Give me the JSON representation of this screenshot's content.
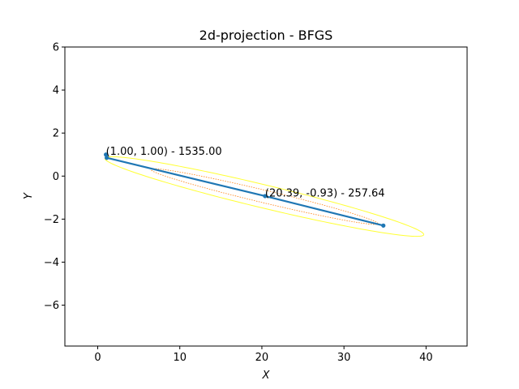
{
  "chart_data": {
    "type": "line",
    "title": "2d-projection - BFGS",
    "xlabel": "X",
    "ylabel": "Y",
    "xlim": [
      -4,
      45
    ],
    "ylim": [
      -7.9,
      6
    ],
    "xticks": [
      0,
      10,
      20,
      30,
      40
    ],
    "yticks": [
      -6,
      -4,
      -2,
      0,
      2,
      4,
      6
    ],
    "xtick_labels": [
      "0",
      "10",
      "20",
      "30",
      "40"
    ],
    "ytick_labels": [
      "−6",
      "−4",
      "−2",
      "0",
      "2",
      "4",
      "6"
    ],
    "grid": false,
    "series": [
      {
        "color": "#1f77b4",
        "x": [
          1.0,
          1.1,
          20.39,
          34.8
        ],
        "y": [
          1.0,
          0.85,
          -0.93,
          -2.3
        ]
      }
    ],
    "contours": [
      {
        "color": "#ffff33",
        "style": "solid",
        "center": [
          20.3,
          -0.95
        ],
        "semi_major": 19.5,
        "semi_minor": 0.55,
        "angle_deg": -5.2
      },
      {
        "color": "#ff7f0e",
        "style": "dotted",
        "center": [
          20.3,
          -0.95
        ],
        "semi_major": 13.9,
        "semi_minor": 0.3,
        "angle_deg": -5.2
      }
    ],
    "annotations": [
      {
        "text": "(1.00, 1.00) - 1535.00",
        "x": 1.0,
        "y": 1.0
      },
      {
        "text": "(20.39, -0.93) - 257.64",
        "x": 20.39,
        "y": -0.93
      }
    ]
  }
}
